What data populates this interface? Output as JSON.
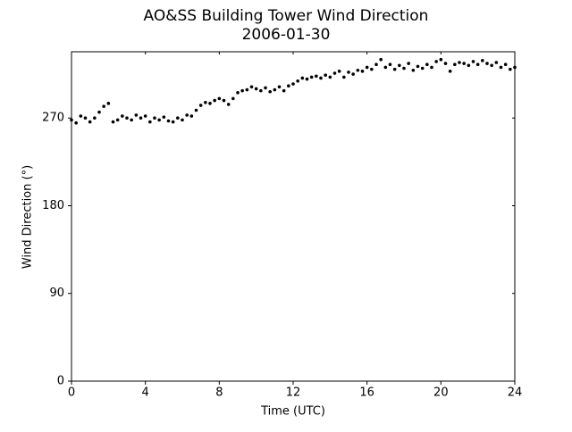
{
  "chart_data": {
    "type": "scatter",
    "title": "AO&SS Building Tower Wind Direction",
    "subtitle": "2006-01-30",
    "x_label": "Time (UTC)",
    "y_label": "Wind Direction (°)",
    "color": "#000000",
    "xlim": [
      0,
      24
    ],
    "xticks": [
      0,
      4,
      8,
      12,
      16,
      20,
      24
    ],
    "ylim": [
      0,
      338
    ],
    "yticks": [
      0,
      90,
      180,
      270
    ],
    "series": [
      {
        "name": "Wind Direction",
        "color": "#000000",
        "x": [
          0,
          0.25,
          0.5,
          0.75,
          1,
          1.25,
          1.5,
          1.75,
          2,
          2.25,
          2.5,
          2.75,
          3,
          3.25,
          3.5,
          3.75,
          4,
          4.25,
          4.5,
          4.75,
          5,
          5.25,
          5.5,
          5.75,
          6,
          6.25,
          6.5,
          6.75,
          7,
          7.25,
          7.5,
          7.75,
          8,
          8.25,
          8.5,
          8.75,
          9,
          9.25,
          9.5,
          9.75,
          10,
          10.25,
          10.5,
          10.75,
          11,
          11.25,
          11.5,
          11.75,
          12,
          12.25,
          12.5,
          12.75,
          13,
          13.25,
          13.5,
          13.75,
          14,
          14.25,
          14.5,
          14.75,
          15,
          15.25,
          15.5,
          15.75,
          16,
          16.25,
          16.5,
          16.75,
          17,
          17.25,
          17.5,
          17.75,
          18,
          18.25,
          18.5,
          18.75,
          19,
          19.25,
          19.5,
          19.75,
          20,
          20.25,
          20.5,
          20.75,
          21,
          21.25,
          21.5,
          21.75,
          22,
          22.25,
          22.5,
          22.75,
          23,
          23.25,
          23.5,
          23.75,
          24
        ],
        "values": [
          268,
          265,
          272,
          270,
          266,
          270,
          276,
          282,
          285,
          266,
          268,
          272,
          270,
          268,
          273,
          270,
          272,
          266,
          270,
          268,
          271,
          267,
          266,
          270,
          268,
          273,
          272,
          278,
          283,
          286,
          285,
          288,
          290,
          288,
          284,
          290,
          296,
          298,
          299,
          302,
          300,
          298,
          301,
          297,
          299,
          302,
          298,
          303,
          305,
          308,
          311,
          310,
          312,
          313,
          311,
          314,
          312,
          316,
          318,
          312,
          317,
          315,
          319,
          318,
          322,
          320,
          325,
          330,
          322,
          325,
          320,
          324,
          321,
          326,
          319,
          323,
          321,
          325,
          322,
          328,
          330,
          326,
          318,
          325,
          327,
          326,
          324,
          328,
          325,
          329,
          326,
          324,
          327,
          322,
          325,
          320,
          322
        ]
      }
    ]
  }
}
